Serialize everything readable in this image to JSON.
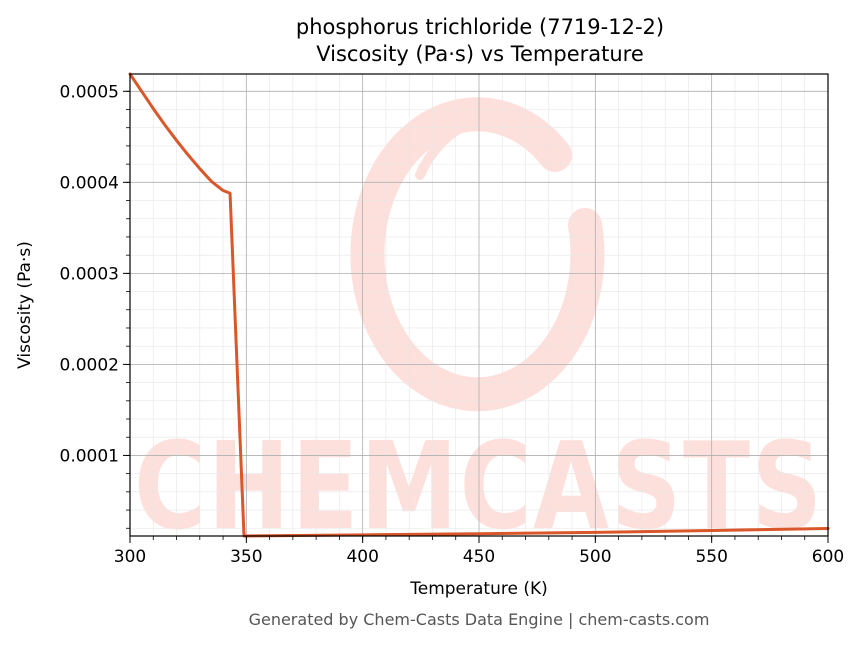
{
  "colors": {
    "line": "#d9572a",
    "grid_major": "#b0b0b0",
    "grid_minor": "#e6e6e6",
    "watermark": "#fde0dc"
  },
  "watermark": {
    "icon": "chem-casts-swirl-logo",
    "text": "CHEMCASTS"
  },
  "footer": "Generated by Chem-Casts Data Engine | chem-casts.com",
  "chart_data": {
    "type": "line",
    "title": "phosphorus trichloride (7719-12-2)",
    "subtitle": "Viscosity (Pa·s) vs Temperature",
    "xlabel": "Temperature (K)",
    "ylabel": "Viscosity (Pa·s)",
    "xlim": [
      300,
      600
    ],
    "ylim": [
      1.15e-05,
      0.000519
    ],
    "x_ticks": [
      "300",
      "350",
      "400",
      "450",
      "500",
      "550",
      "600"
    ],
    "y_ticks": [
      "0.0001",
      "0.0002",
      "0.0003",
      "0.0004",
      "0.0005"
    ],
    "grid": true,
    "legend": "none",
    "series": [
      {
        "x": [
          300,
          305,
          310,
          315,
          320,
          325,
          330,
          335,
          340,
          343,
          349,
          360,
          400,
          450,
          500,
          550,
          600
        ],
        "y": [
          0.000519,
          0.0005,
          0.000481,
          0.000463,
          0.000446,
          0.00043,
          0.000415,
          0.000401,
          0.000391,
          0.000388,
          1.15e-05,
          1.18e-05,
          1.28e-05,
          1.4e-05,
          1.55e-05,
          1.75e-05,
          1.98e-05
        ]
      }
    ]
  }
}
